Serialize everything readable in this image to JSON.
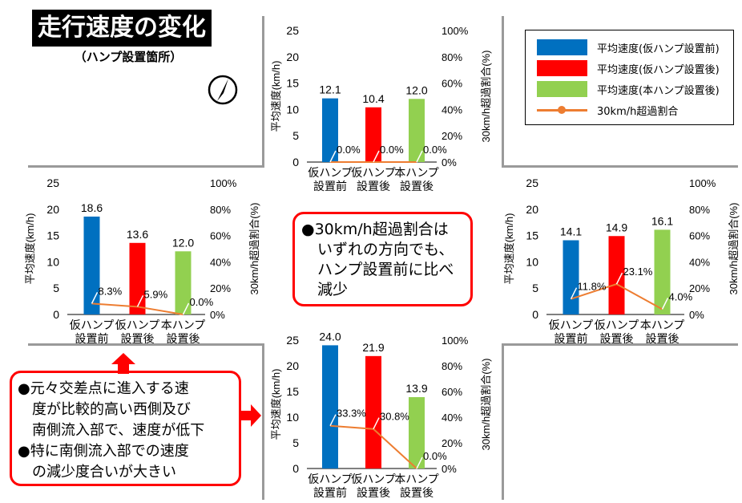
{
  "title": "走行速度の変化",
  "subtitle": "（ハンプ設置箇所）",
  "colors": {
    "before_temp": "#0070c0",
    "after_temp": "#ff0000",
    "after_perm": "#92d050",
    "ratio_line": "#ed7d31",
    "callout_border": "#ff0000"
  },
  "legend": [
    {
      "label": "平均速度(仮ハンプ設置前)",
      "kind": "bar",
      "color": "#0070c0"
    },
    {
      "label": "平均速度(仮ハンプ設置後)",
      "kind": "bar",
      "color": "#ff0000"
    },
    {
      "label": "平均速度(本ハンプ設置後)",
      "kind": "bar",
      "color": "#92d050"
    },
    {
      "label": "30km/h超過割合",
      "kind": "line",
      "color": "#ed7d31"
    }
  ],
  "callout_center": [
    "●30km/h超過割合は",
    "いずれの方向でも、",
    "ハンプ設置前に比べ",
    "減少"
  ],
  "callout_left": [
    "●元々交差点に進入する速",
    "度が比較的高い西側及び",
    "南側流入部で、速度が低下",
    "●特に南側流入部での速度",
    "の減少度合いが大きい"
  ],
  "chart_data": [
    {
      "id": "north",
      "type": "bar",
      "categories": [
        [
          "仮ハンプ",
          "設置前"
        ],
        [
          "仮ハンプ",
          "設置後"
        ],
        [
          "本ハンプ",
          "設置後"
        ]
      ],
      "values": [
        12.1,
        10.4,
        12.0
      ],
      "value_labels": [
        "12.1",
        "10.4",
        "12.0"
      ],
      "ratio": [
        0.0,
        0.0,
        0.0
      ],
      "ratio_labels": [
        "0.0%",
        "0.0%",
        "0.0%"
      ],
      "ylabel": "平均速度(km/h)",
      "y2label": "30km/h超過割合(%)",
      "ylim": [
        0,
        25
      ],
      "yticks": [
        "0",
        "5",
        "10",
        "15",
        "20",
        "25"
      ],
      "y2lim": [
        0,
        100
      ],
      "y2ticks": [
        "0%",
        "20%",
        "40%",
        "60%",
        "80%",
        "100%"
      ]
    },
    {
      "id": "west",
      "type": "bar",
      "categories": [
        [
          "仮ハンプ",
          "設置前"
        ],
        [
          "仮ハンプ",
          "設置後"
        ],
        [
          "本ハンプ",
          "設置後"
        ]
      ],
      "values": [
        18.6,
        13.6,
        12.0
      ],
      "value_labels": [
        "18.6",
        "13.6",
        "12.0"
      ],
      "ratio": [
        8.3,
        5.9,
        0.0
      ],
      "ratio_labels": [
        "8.3%",
        "5.9%",
        "0.0%"
      ],
      "ylabel": "平均速度(km/h)",
      "y2label": "30km/h超過割合(%)",
      "ylim": [
        0,
        25
      ],
      "yticks": [
        "0",
        "5",
        "10",
        "15",
        "20",
        "25"
      ],
      "y2lim": [
        0,
        100
      ],
      "y2ticks": [
        "0%",
        "20%",
        "40%",
        "60%",
        "80%",
        "100%"
      ]
    },
    {
      "id": "east",
      "type": "bar",
      "categories": [
        [
          "仮ハンプ",
          "設置前"
        ],
        [
          "仮ハンプ",
          "設置後"
        ],
        [
          "本ハンプ",
          "設置後"
        ]
      ],
      "values": [
        14.1,
        14.9,
        16.1
      ],
      "value_labels": [
        "14.1",
        "14.9",
        "16.1"
      ],
      "ratio": [
        11.8,
        23.1,
        4.0
      ],
      "ratio_labels": [
        "11.8%",
        "23.1%",
        "4.0%"
      ],
      "ylabel": "平均速度(km/h)",
      "y2label": "30km/h超過割合(%)",
      "ylim": [
        0,
        25
      ],
      "yticks": [
        "0",
        "5",
        "10",
        "15",
        "20",
        "25"
      ],
      "y2lim": [
        0,
        100
      ],
      "y2ticks": [
        "0%",
        "20%",
        "40%",
        "60%",
        "80%",
        "100%"
      ]
    },
    {
      "id": "south",
      "type": "bar",
      "categories": [
        [
          "仮ハンプ",
          "設置前"
        ],
        [
          "仮ハンプ",
          "設置後"
        ],
        [
          "本ハンプ",
          "設置後"
        ]
      ],
      "values": [
        24.0,
        21.9,
        13.9
      ],
      "value_labels": [
        "24.0",
        "21.9",
        "13.9"
      ],
      "ratio": [
        33.3,
        30.8,
        0.0
      ],
      "ratio_labels": [
        "33.3%",
        "30.8%",
        "0.0%"
      ],
      "ylabel": "平均速度(km/h)",
      "y2label": "30km/h超過割合(%)",
      "ylim": [
        0,
        25
      ],
      "yticks": [
        "0",
        "5",
        "10",
        "15",
        "20",
        "25"
      ],
      "y2lim": [
        0,
        100
      ],
      "y2ticks": [
        "0%",
        "20%",
        "40%",
        "60%",
        "80%",
        "100%"
      ]
    }
  ]
}
